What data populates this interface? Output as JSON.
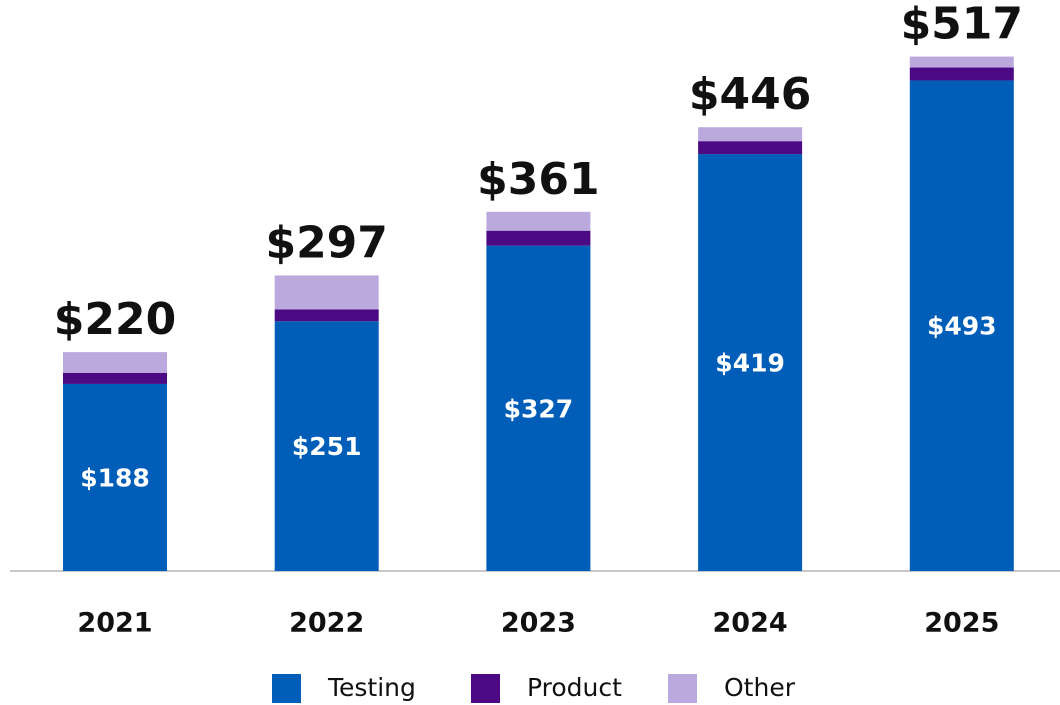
{
  "chart_data": {
    "type": "stacked_bar",
    "categories": [
      "2021",
      "2022",
      "2023",
      "2024",
      "2025"
    ],
    "series": [
      {
        "name": "Testing",
        "color": "#005EB8",
        "values": [
          188,
          251,
          327,
          419,
          493
        ],
        "value_labels": [
          "$188",
          "$251",
          "$327",
          "$419",
          "$493"
        ]
      },
      {
        "name": "Product",
        "color": "#4B0A84",
        "values": [
          11,
          12,
          15,
          13,
          13
        ]
      },
      {
        "name": "Other",
        "color": "#BBA9DE",
        "values": [
          21,
          34,
          19,
          14,
          11
        ]
      }
    ],
    "totals": [
      220,
      297,
      361,
      446,
      517
    ],
    "total_labels": [
      "$220",
      "$297",
      "$361",
      "$446",
      "$517"
    ]
  }
}
